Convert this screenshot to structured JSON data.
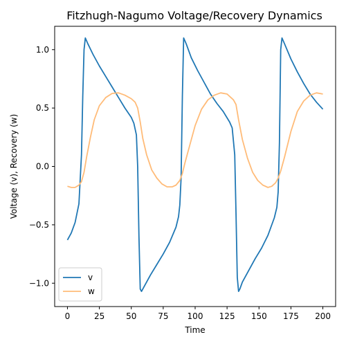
{
  "chart_data": {
    "type": "line",
    "title": "Fitzhugh-Nagumo Voltage/Recovery Dynamics",
    "xlabel": "Time",
    "ylabel": "Voltage (v), Recovery (w)",
    "xlim": [
      -10,
      210
    ],
    "ylim": [
      -1.2,
      1.2
    ],
    "xticks": [
      0,
      25,
      50,
      75,
      100,
      125,
      150,
      175,
      200
    ],
    "yticks": [
      -1.0,
      -0.5,
      0.0,
      0.5,
      1.0
    ],
    "ytick_labels": [
      "−1.0",
      "−0.5",
      "0.0",
      "0.5",
      "1.0"
    ],
    "grid": false,
    "legend_position": "lower-left",
    "series": [
      {
        "name": "v",
        "color": "#1f77b4",
        "x": [
          0,
          3,
          6,
          9,
          11,
          12,
          13,
          14,
          16,
          20,
          25,
          30,
          35,
          40,
          45,
          50,
          52,
          54,
          55,
          56,
          57,
          58,
          60,
          65,
          70,
          75,
          80,
          85,
          87,
          88,
          89,
          90,
          91,
          93,
          97,
          102,
          107,
          112,
          117,
          122,
          127,
          129,
          131,
          132,
          133,
          134,
          135,
          137,
          142,
          147,
          152,
          157,
          162,
          164,
          165,
          166,
          167,
          168,
          170,
          175,
          180,
          185,
          190,
          195,
          200
        ],
        "y": [
          -0.63,
          -0.57,
          -0.48,
          -0.32,
          0.1,
          0.6,
          1.0,
          1.1,
          1.05,
          0.96,
          0.86,
          0.77,
          0.68,
          0.59,
          0.5,
          0.42,
          0.37,
          0.27,
          0.0,
          -0.6,
          -1.05,
          -1.07,
          -1.03,
          -0.93,
          -0.84,
          -0.75,
          -0.65,
          -0.52,
          -0.43,
          -0.33,
          -0.1,
          0.6,
          1.1,
          1.05,
          0.93,
          0.82,
          0.72,
          0.62,
          0.54,
          0.47,
          0.38,
          0.33,
          0.1,
          -0.4,
          -0.95,
          -1.07,
          -1.05,
          -0.99,
          -0.89,
          -0.79,
          -0.7,
          -0.59,
          -0.44,
          -0.35,
          -0.22,
          0.2,
          1.0,
          1.1,
          1.05,
          0.92,
          0.81,
          0.71,
          0.62,
          0.55,
          0.49
        ]
      },
      {
        "name": "w",
        "color": "#ffbb78",
        "x": [
          0,
          3,
          6,
          9,
          11,
          13,
          15,
          18,
          21,
          25,
          30,
          35,
          40,
          45,
          50,
          53,
          55,
          57,
          59,
          62,
          66,
          70,
          74,
          78,
          82,
          85,
          88,
          90,
          92,
          95,
          100,
          105,
          110,
          115,
          120,
          125,
          128,
          130,
          132,
          134,
          137,
          141,
          145,
          149,
          153,
          157,
          160,
          163,
          165,
          167,
          170,
          175,
          180,
          185,
          190,
          195,
          200
        ],
        "y": [
          -0.17,
          -0.18,
          -0.18,
          -0.16,
          -0.13,
          -0.05,
          0.08,
          0.25,
          0.4,
          0.52,
          0.59,
          0.625,
          0.63,
          0.61,
          0.58,
          0.55,
          0.5,
          0.38,
          0.24,
          0.1,
          -0.03,
          -0.1,
          -0.15,
          -0.175,
          -0.175,
          -0.16,
          -0.12,
          -0.06,
          0.03,
          0.15,
          0.35,
          0.49,
          0.57,
          0.61,
          0.63,
          0.62,
          0.59,
          0.57,
          0.53,
          0.4,
          0.23,
          0.07,
          -0.05,
          -0.12,
          -0.16,
          -0.18,
          -0.17,
          -0.14,
          -0.1,
          -0.04,
          0.08,
          0.3,
          0.47,
          0.56,
          0.61,
          0.63,
          0.62
        ]
      }
    ]
  }
}
